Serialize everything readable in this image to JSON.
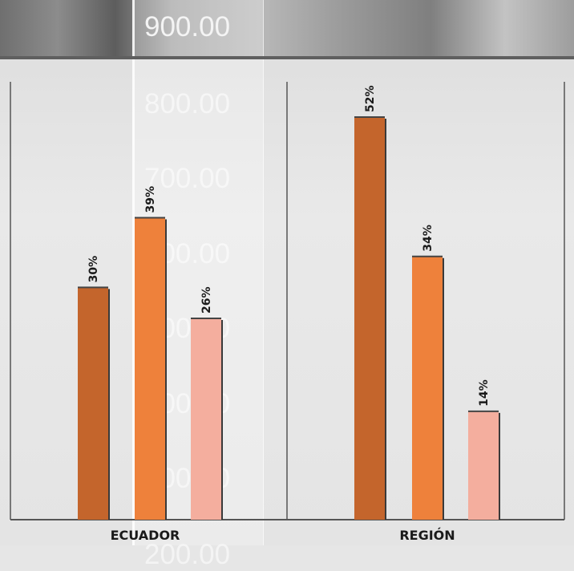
{
  "background_ticks": [
    "900.00",
    "800.00",
    "700.00",
    "600.00",
    "500.00",
    "400.00",
    "300.00",
    "200.00"
  ],
  "colors": {
    "series_1": "#c4652c",
    "series_2": "#ee813b",
    "series_3": "#f4ae9e",
    "frame": "#555555"
  },
  "chart_data": [
    {
      "type": "bar",
      "category": "ECUADOR",
      "values": [
        30,
        39,
        26
      ],
      "labels": [
        "30%",
        "39%",
        "26%"
      ],
      "ylim": [
        0,
        60
      ]
    },
    {
      "type": "bar",
      "category": "REGIÓN",
      "values": [
        52,
        34,
        14
      ],
      "labels": [
        "52%",
        "34%",
        "14%"
      ],
      "ylim": [
        0,
        60
      ]
    }
  ]
}
